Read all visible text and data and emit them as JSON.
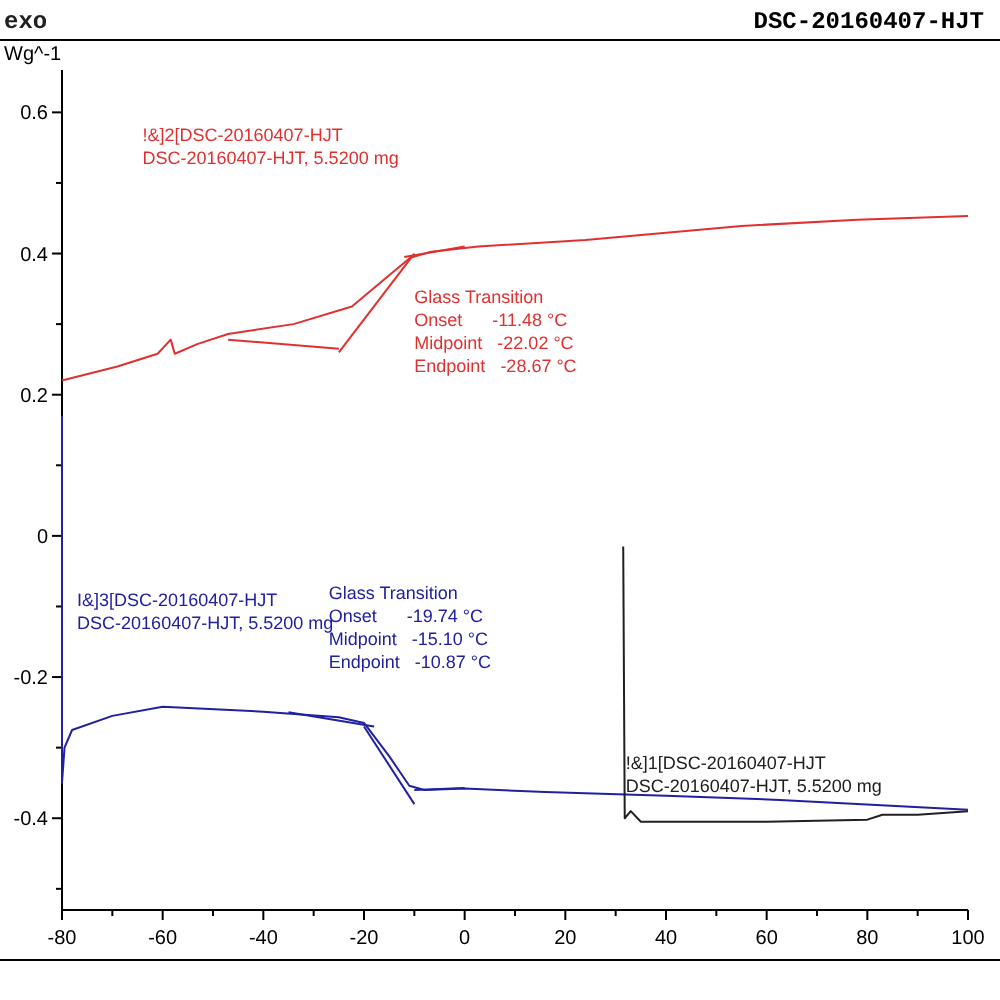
{
  "chart_data": {
    "type": "line",
    "title": "DSC-20160407-HJT",
    "ylabel": "Wg^-1",
    "xlim": [
      -80,
      100
    ],
    "ylim": [
      -0.53,
      0.66
    ],
    "xticks": [
      -80,
      {
        "value": -70,
        "label": null
      },
      -60,
      {
        "value": -50,
        "label": null
      },
      -40,
      {
        "value": -30,
        "label": null
      },
      -20,
      {
        "value": -10,
        "label": null
      },
      0,
      {
        "value": 10,
        "label": null
      },
      20,
      {
        "value": 30,
        "label": null
      },
      40,
      {
        "value": 50,
        "label": null
      },
      60,
      {
        "value": 70,
        "label": null
      },
      80,
      {
        "value": 90,
        "label": null
      },
      100
    ],
    "yticks": [
      {
        "value": -0.5,
        "label": null
      },
      -0.4,
      {
        "value": -0.3,
        "label": null
      },
      -0.2,
      {
        "value": -0.1,
        "label": null
      },
      0.0,
      {
        "value": 0.1,
        "label": null
      },
      0.2,
      {
        "value": 0.3,
        "label": null
      },
      0.4,
      {
        "value": 0.5,
        "label": null
      },
      0.6
    ],
    "grid": false,
    "marker": "none",
    "line_style": "solid",
    "series": [
      {
        "color": "#e03030",
        "x": [
          -80,
          -69,
          -61,
          -58.4,
          -57.6,
          -53,
          -47,
          -34,
          -22.4,
          -14.7,
          -10.8,
          -7,
          2.7,
          24,
          55,
          78,
          100
        ],
        "values": [
          0.22,
          0.24,
          0.258,
          0.278,
          0.258,
          0.272,
          0.286,
          0.3,
          0.325,
          0.371,
          0.394,
          0.402,
          0.41,
          0.419,
          0.439,
          0.448,
          0.453
        ]
      },
      {
        "color": "#2020a0",
        "x": [
          -80,
          -80,
          -79.5,
          -78,
          -70,
          -60,
          -40,
          -25,
          -20,
          -15,
          -11,
          -8,
          0,
          16,
          40,
          62.6,
          100
        ],
        "values": [
          0.17,
          -0.35,
          -0.3,
          -0.275,
          -0.255,
          -0.242,
          -0.249,
          -0.257,
          -0.265,
          -0.312,
          -0.354,
          -0.36,
          -0.358,
          -0.363,
          -0.368,
          -0.374,
          -0.388
        ]
      },
      {
        "color": "#202020",
        "x": [
          31.5,
          31.8,
          33,
          35,
          60,
          80,
          83,
          90,
          100
        ],
        "values": [
          -0.015,
          -0.4,
          -0.39,
          -0.405,
          -0.405,
          -0.402,
          -0.395,
          -0.395,
          -0.39
        ]
      },
      {
        "color": "#e03030",
        "x": [
          -47,
          -25
        ],
        "values": [
          0.278,
          0.265
        ]
      },
      {
        "color": "#e03030",
        "x": [
          -25,
          -10
        ],
        "values": [
          0.26,
          0.4
        ]
      },
      {
        "color": "#e03030",
        "x": [
          -12,
          0
        ],
        "values": [
          0.395,
          0.41
        ]
      },
      {
        "color": "#2020a0",
        "x": [
          -35,
          -18
        ],
        "values": [
          -0.25,
          -0.27
        ]
      },
      {
        "color": "#2020a0",
        "x": [
          -20,
          -10
        ],
        "values": [
          -0.27,
          -0.38
        ]
      },
      {
        "color": "#2020a0",
        "x": [
          -10,
          0
        ],
        "values": [
          -0.36,
          -0.357
        ]
      }
    ],
    "annotations": [
      "exo",
      "!&]2[DSC-20160407-HJT\nDSC-20160407-HJT, 5.5200 mg",
      "Glass Transition\nOnset      -11.48 °C\nMidpoint   -22.02 °C\nEndpoint   -28.67 °C",
      "I&]3[DSC-20160407-HJT\nDSC-20160407-HJT, 5.5200 mg",
      "Glass Transition\nOnset      -19.74 °C\nMidpoint   -15.10 °C\nEndpoint   -10.87 °C",
      "!&]1[DSC-20160407-HJT\nDSC-20160407-HJT, 5.5200 mg"
    ]
  }
}
